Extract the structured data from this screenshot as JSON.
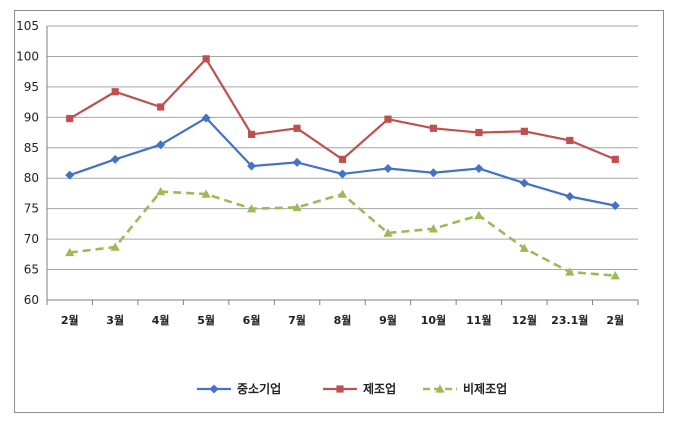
{
  "chart_data": {
    "type": "line",
    "categories": [
      "2월",
      "3월",
      "4월",
      "5월",
      "6월",
      "7월",
      "8월",
      "9월",
      "10월",
      "11월",
      "12월",
      "23.1월",
      "2월"
    ],
    "ylim": [
      60,
      105
    ],
    "yticks": [
      60,
      65,
      70,
      75,
      80,
      85,
      90,
      95,
      100,
      105
    ],
    "grid": true,
    "legend_position": "bottom",
    "series": [
      {
        "name": "중소기업",
        "color": "#4472c4",
        "marker": "diamond",
        "dash": "solid",
        "values": [
          80.5,
          83.1,
          85.5,
          89.9,
          82.0,
          82.6,
          80.7,
          81.6,
          80.9,
          81.6,
          79.2,
          77.0,
          75.5
        ]
      },
      {
        "name": "제조업",
        "color": "#c0504d",
        "marker": "square",
        "dash": "solid",
        "values": [
          89.8,
          94.2,
          91.7,
          99.6,
          87.2,
          88.2,
          83.1,
          89.7,
          88.2,
          87.5,
          87.7,
          86.2,
          83.1
        ]
      },
      {
        "name": "비제조업",
        "color": "#9bbb59",
        "marker": "triangle",
        "dash": "dashed",
        "values": [
          67.8,
          68.7,
          77.8,
          77.4,
          75.0,
          75.2,
          77.4,
          71.0,
          71.7,
          73.9,
          68.5,
          64.6,
          64.0
        ]
      }
    ]
  }
}
